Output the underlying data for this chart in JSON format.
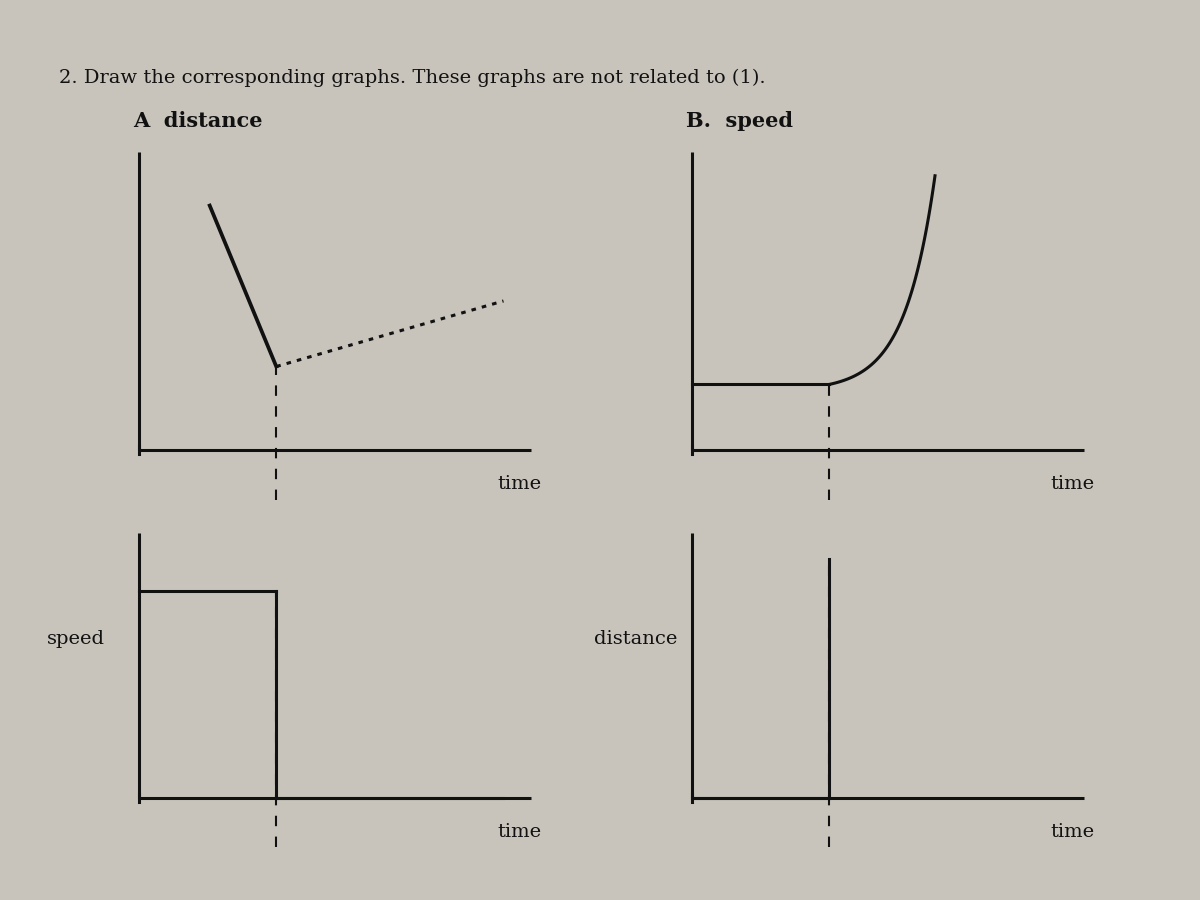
{
  "title_line1": "2. Draw the corresponding graphs. These graphs are not related to (1).",
  "label_A": "A  distance",
  "label_B": "B.  speed",
  "label_speed": "speed",
  "label_distance": "distance",
  "label_time": "time",
  "line_color": "#111111",
  "bg_outer": "#c8c4bc",
  "bg_paper": "#e8e5de",
  "title_fontsize": 14,
  "label_fontsize": 14,
  "lw": 2.2
}
